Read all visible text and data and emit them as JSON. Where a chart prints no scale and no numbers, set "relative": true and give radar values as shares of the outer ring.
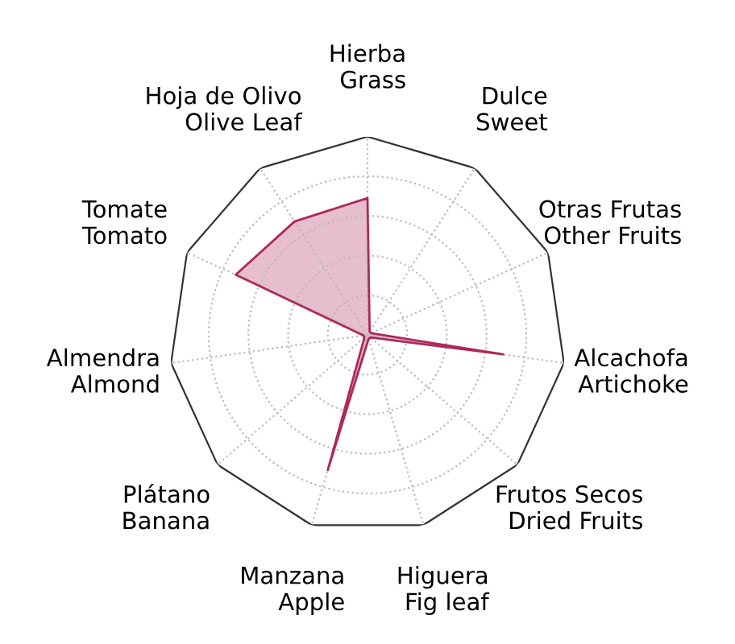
{
  "chart_data": {
    "type": "radar",
    "relative": true,
    "grid": true,
    "categories": [
      "Hierba\nGrass",
      "Dulce\nSweet",
      "Otras Frutas\nOther Fruits",
      "Alcachofa\nArtichoke",
      "Frutos Secos\nDried Fruits",
      "Higuera\nFig leaf",
      "Manzana\nApple",
      "Plátano\nBanana",
      "Almendra\nAlmond",
      "Tomate\nTomato",
      "Hoja de Olivo\nOlive Leaf"
    ],
    "series": [
      {
        "color": "#b0285a",
        "values": [
          0.69,
          0.02,
          0.02,
          0.69,
          0.02,
          0.02,
          0.71,
          0.02,
          0.02,
          0.73,
          0.68
        ]
      }
    ]
  }
}
